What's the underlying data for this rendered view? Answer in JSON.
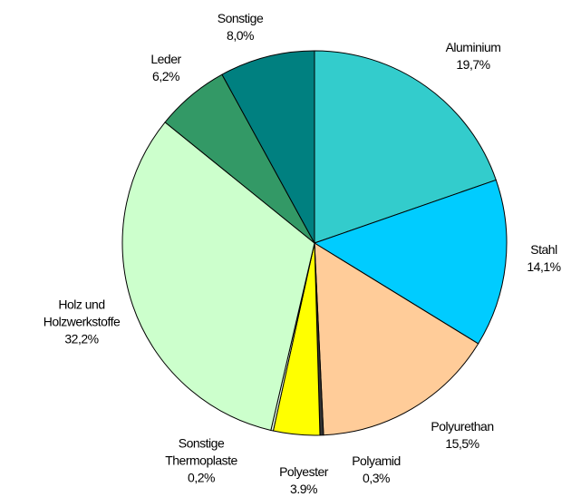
{
  "chart_data": {
    "type": "pie",
    "categories": [
      "Aluminium",
      "Stahl",
      "Polyurethan",
      "Polyamid",
      "Polyester",
      "Sonstige Thermoplaste",
      "Holz und Holzwerkstoffe",
      "Leder",
      "Sonstige"
    ],
    "values": [
      19.7,
      14.1,
      15.5,
      0.3,
      3.9,
      0.2,
      32.2,
      6.2,
      8.0
    ],
    "value_labels": [
      "19,7%",
      "14,1%",
      "15,5%",
      "0,3%",
      "3.9%",
      "0,2%",
      "32,2%",
      "6,2%",
      "8,0%"
    ],
    "colors": [
      "#33cccc",
      "#00ccff",
      "#ffcc99",
      "#333333",
      "#ffff00",
      "#e8ffe8",
      "#ccffcc",
      "#339966",
      "#008080"
    ]
  }
}
